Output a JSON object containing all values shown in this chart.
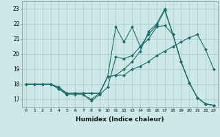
{
  "title": "",
  "xlabel": "Humidex (Indice chaleur)",
  "xlim": [
    -0.5,
    23.5
  ],
  "ylim": [
    16.5,
    23.5
  ],
  "yticks": [
    17,
    18,
    19,
    20,
    21,
    22,
    23
  ],
  "xticks": [
    0,
    1,
    2,
    3,
    4,
    5,
    6,
    7,
    8,
    9,
    10,
    11,
    12,
    13,
    14,
    15,
    16,
    17,
    18,
    19,
    20,
    21,
    22,
    23
  ],
  "bg_color": "#cde8e8",
  "grid_color": "#a8c8c8",
  "line_color": "#1a6b6b",
  "series": [
    {
      "x": [
        0,
        1,
        2,
        3,
        4,
        5,
        6,
        7,
        8,
        9,
        10,
        11,
        12,
        13,
        14,
        15,
        16,
        17,
        18,
        19,
        20,
        21,
        22,
        23
      ],
      "y": [
        18,
        18,
        18,
        18,
        17.8,
        17.3,
        17.3,
        17.3,
        16.9,
        17.3,
        17.8,
        19.8,
        19.7,
        19.9,
        20.5,
        21.0,
        21.8,
        21.9,
        21.3,
        19.5,
        18.1,
        17.1,
        16.7,
        16.6
      ]
    },
    {
      "x": [
        0,
        1,
        2,
        3,
        4,
        5,
        6,
        7,
        8,
        9,
        10,
        11,
        12,
        13,
        14,
        15,
        16,
        17,
        18,
        19,
        20,
        21,
        22,
        23
      ],
      "y": [
        18,
        18,
        18,
        18,
        17.7,
        17.3,
        17.3,
        17.3,
        17.0,
        17.4,
        18.5,
        21.8,
        20.8,
        21.8,
        20.5,
        21.3,
        21.9,
        22.9,
        21.3,
        19.5,
        18.1,
        17.1,
        16.7,
        16.6
      ]
    },
    {
      "x": [
        0,
        1,
        2,
        3,
        4,
        5,
        6,
        7,
        8,
        9,
        10,
        11,
        12,
        13,
        14,
        15,
        16,
        17,
        18,
        19,
        20,
        21,
        22,
        23
      ],
      "y": [
        18,
        18,
        18,
        18,
        17.8,
        17.4,
        17.4,
        17.4,
        17.4,
        17.4,
        18.5,
        18.6,
        18.6,
        19.0,
        19.2,
        19.5,
        19.9,
        20.2,
        20.5,
        20.8,
        21.1,
        21.3,
        20.3,
        19.0
      ]
    },
    {
      "x": [
        0,
        1,
        2,
        3,
        4,
        5,
        6,
        7,
        8,
        9,
        10,
        11,
        12,
        13,
        14,
        15,
        16,
        17,
        18,
        19,
        20,
        21,
        22,
        23
      ],
      "y": [
        18,
        18,
        18,
        18,
        17.8,
        17.4,
        17.4,
        17.4,
        17.4,
        17.4,
        18.5,
        18.6,
        19.0,
        19.5,
        20.2,
        21.5,
        22.0,
        23.0,
        21.3,
        19.5,
        18.1,
        17.1,
        16.7,
        16.6
      ]
    }
  ]
}
